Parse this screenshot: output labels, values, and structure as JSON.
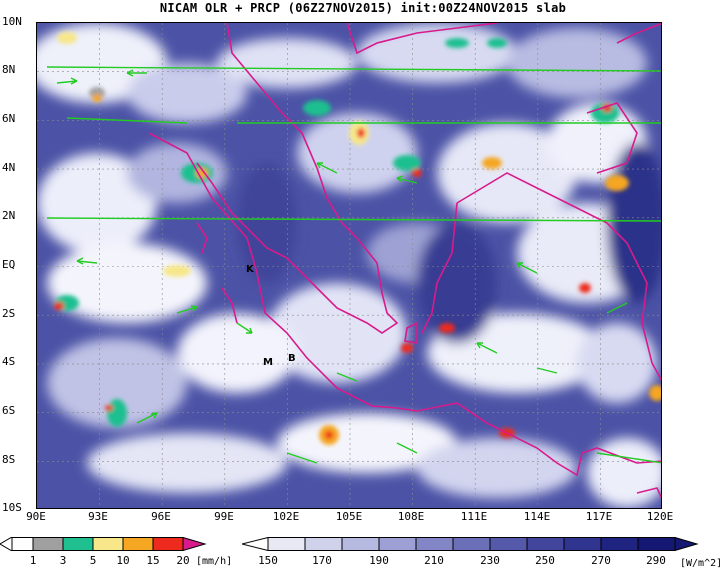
{
  "title": "NICAM OLR + PRCP (06Z27NOV2015) init:00Z24NOV2015 slab",
  "map": {
    "lat_labels": [
      "10N",
      "8N",
      "6N",
      "4N",
      "2N",
      "EQ",
      "2S",
      "4S",
      "6S",
      "8S",
      "10S"
    ],
    "lon_labels": [
      "90E",
      "93E",
      "96E",
      "99E",
      "102E",
      "105E",
      "108E",
      "111E",
      "114E",
      "117E",
      "120E"
    ],
    "stations": [
      {
        "label": "K",
        "lon": 100.0,
        "lat": -0.2
      },
      {
        "label": "M",
        "lon": 101.0,
        "lat": -4.0
      },
      {
        "label": "B",
        "lon": 102.3,
        "lat": -3.8
      }
    ]
  },
  "precip_colorbar": {
    "ticks": [
      "1",
      "3",
      "5",
      "10",
      "15",
      "20"
    ],
    "units": "[mm/h]",
    "colors": [
      "#ffffff",
      "#a0a0a0",
      "#1fbf8f",
      "#f7e78a",
      "#f5a623",
      "#ee2a1e",
      "#d81b8c"
    ]
  },
  "olr_colorbar": {
    "ticks": [
      "150",
      "170",
      "190",
      "210",
      "230",
      "250",
      "270",
      "290"
    ],
    "units": "[W/m^2]",
    "colors": [
      "#ffffff",
      "#e8e8f5",
      "#d0d2ec",
      "#b6b9e0",
      "#9ca0d4",
      "#8286c6",
      "#6a6fb8",
      "#5559aa",
      "#41469c",
      "#2f348e",
      "#1f2480",
      "#141873"
    ]
  }
}
